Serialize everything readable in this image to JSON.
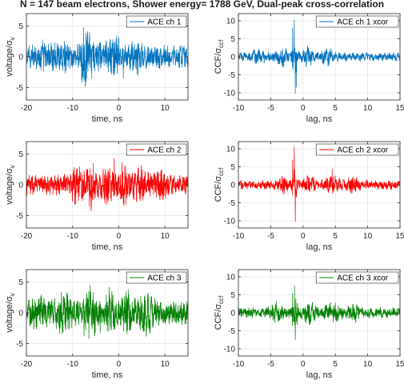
{
  "figure": {
    "title": "N = 147 beam electrons, Shower energy= 1788 GeV, Dual-peak cross-correlation"
  },
  "colors": {
    "ch1": "#0072BD",
    "ch2": "#FF0000",
    "ch3": "#008000"
  },
  "chart_data": [
    {
      "type": "line",
      "id": "v1",
      "xlabel": "time, ns",
      "ylabel": "voltage/",
      "ylabel_sym": "σ",
      "ylabel_sub": "v",
      "xlim": [
        -20,
        15
      ],
      "ylim": [
        -7,
        7
      ],
      "xticks": [
        "-20",
        "-10",
        "0",
        "10"
      ],
      "xtick_values": [
        -20,
        -10,
        0,
        10
      ],
      "yticks": [
        "-5",
        "0",
        "5"
      ],
      "ytick_values": [
        -5,
        0,
        5
      ],
      "grid": true,
      "legend": "top-right",
      "series": [
        {
          "name": "ACE ch 1",
          "color": "#0072BD",
          "noise": 0.9,
          "features": [
            {
              "x": -16,
              "w": 1.5,
              "a": 0.5
            },
            {
              "x": -12,
              "w": 1.5,
              "a": 0.6
            },
            {
              "x": -7.5,
              "w": 0.8,
              "a": 1.3
            },
            {
              "x": -6.5,
              "w": 1.2,
              "a": 1.1
            },
            {
              "x": -3,
              "w": 1.5,
              "a": 0.7
            },
            {
              "x": -0.5,
              "w": 1.0,
              "a": 1.0
            },
            {
              "x": 4,
              "w": 1.5,
              "a": 0.6
            }
          ],
          "peaks": [
            {
              "x": -7.6,
              "y": 4.8
            },
            {
              "x": -7.2,
              "y": -4.7
            },
            {
              "x": -6.3,
              "y": 4.0
            },
            {
              "x": -0.4,
              "y": 3.5
            },
            {
              "x": 1.0,
              "y": -3.5
            },
            {
              "x": 4.2,
              "y": -3.0
            },
            {
              "x": -16.5,
              "y": 2.8
            }
          ]
        }
      ]
    },
    {
      "type": "line",
      "id": "c1",
      "xlabel": "lag, ns",
      "ylabel": "CCF/",
      "ylabel_sym": "σ",
      "ylabel_sub": "ccf",
      "xlim": [
        -10,
        15
      ],
      "ylim": [
        -12,
        12
      ],
      "xticks": [
        "-10",
        "-5",
        "0",
        "5",
        "10",
        "15"
      ],
      "xtick_values": [
        -10,
        -5,
        0,
        5,
        10,
        15
      ],
      "yticks": [
        "-10",
        "-5",
        "0",
        "5",
        "10"
      ],
      "ytick_values": [
        -10,
        -5,
        0,
        5,
        10
      ],
      "grid": true,
      "legend": "top-right",
      "series": [
        {
          "name": "ACE ch 1 xcor",
          "color": "#0072BD",
          "noise": 0.6,
          "features": [
            {
              "x": -1.3,
              "w": 0.4,
              "a": 3.0
            },
            {
              "x": -3.2,
              "w": 0.8,
              "a": 1.5
            },
            {
              "x": 0.8,
              "w": 0.8,
              "a": 1.5
            },
            {
              "x": 3.8,
              "w": 1.0,
              "a": 1.0
            },
            {
              "x": -7,
              "w": 1.2,
              "a": 0.8
            }
          ],
          "peaks": [
            {
              "x": -1.35,
              "y": 10.2
            },
            {
              "x": -1.2,
              "y": -10.3
            },
            {
              "x": -1.6,
              "y": 8.0
            },
            {
              "x": -1.0,
              "y": -8.5
            }
          ]
        }
      ]
    },
    {
      "type": "line",
      "id": "v2",
      "xlabel": "time, ns",
      "ylabel": "voltage/",
      "ylabel_sym": "σ",
      "ylabel_sub": "v",
      "xlim": [
        -20,
        15
      ],
      "ylim": [
        -7,
        7
      ],
      "xticks": [
        "-20",
        "-10",
        "0",
        "10"
      ],
      "xtick_values": [
        -20,
        -10,
        0,
        10
      ],
      "yticks": [
        "-5",
        "0",
        "5"
      ],
      "ytick_values": [
        -5,
        0,
        5
      ],
      "grid": true,
      "legend": "top-right",
      "series": [
        {
          "name": "ACE ch 2",
          "color": "#FF0000",
          "noise": 0.8,
          "features": [
            {
              "x": -9,
              "w": 1.2,
              "a": 1.3
            },
            {
              "x": -6,
              "w": 1.0,
              "a": 1.5
            },
            {
              "x": -2.5,
              "w": 1.2,
              "a": 1.3
            },
            {
              "x": 0.8,
              "w": 1.2,
              "a": 1.4
            },
            {
              "x": 4.5,
              "w": 1.5,
              "a": 0.9
            },
            {
              "x": 9,
              "w": 1.5,
              "a": 0.7
            }
          ],
          "peaks": [
            {
              "x": -6.0,
              "y": -4.3
            },
            {
              "x": -1.0,
              "y": 4.3
            },
            {
              "x": 1.5,
              "y": -3.2
            },
            {
              "x": -8.5,
              "y": 3.0
            }
          ]
        }
      ]
    },
    {
      "type": "line",
      "id": "c2",
      "xlabel": "lag, ns",
      "ylabel": "CCF/",
      "ylabel_sym": "σ",
      "ylabel_sub": "ccf",
      "xlim": [
        -10,
        15
      ],
      "ylim": [
        -12,
        12
      ],
      "xticks": [
        "-10",
        "-5",
        "0",
        "5",
        "10",
        "15"
      ],
      "xtick_values": [
        -10,
        -5,
        0,
        5,
        10,
        15
      ],
      "yticks": [
        "-10",
        "-5",
        "0",
        "5",
        "10"
      ],
      "ytick_values": [
        -10,
        -5,
        0,
        5,
        10
      ],
      "grid": true,
      "legend": "top-right",
      "series": [
        {
          "name": "ACE ch 2 xcor",
          "color": "#FF0000",
          "noise": 0.6,
          "features": [
            {
              "x": -1.3,
              "w": 0.4,
              "a": 3.0
            },
            {
              "x": -3.0,
              "w": 0.8,
              "a": 1.6
            },
            {
              "x": 1.0,
              "w": 0.8,
              "a": 1.5
            },
            {
              "x": 4.5,
              "w": 1.2,
              "a": 1.3
            },
            {
              "x": 7.5,
              "w": 1.2,
              "a": 1.0
            }
          ],
          "peaks": [
            {
              "x": -1.35,
              "y": 10.6
            },
            {
              "x": -1.2,
              "y": -10.3
            },
            {
              "x": -1.6,
              "y": 7.0
            },
            {
              "x": 4.5,
              "y": 4.5
            }
          ]
        }
      ]
    },
    {
      "type": "line",
      "id": "v3",
      "xlabel": "time, ns",
      "ylabel": "voltage/",
      "ylabel_sym": "σ",
      "ylabel_sub": "v",
      "xlim": [
        -20,
        15
      ],
      "ylim": [
        -7,
        7
      ],
      "xticks": [
        "-20",
        "-10",
        "0",
        "10"
      ],
      "xtick_values": [
        -20,
        -10,
        0,
        10
      ],
      "yticks": [
        "-5",
        "0",
        "5"
      ],
      "ytick_values": [
        -5,
        0,
        5
      ],
      "grid": true,
      "legend": "top-right",
      "series": [
        {
          "name": "ACE ch 3",
          "color": "#008000",
          "noise": 1.0,
          "features": [
            {
              "x": -17,
              "w": 1.5,
              "a": 0.6
            },
            {
              "x": -12,
              "w": 1.5,
              "a": 0.8
            },
            {
              "x": -6,
              "w": 1.0,
              "a": 1.3
            },
            {
              "x": -2,
              "w": 1.0,
              "a": 1.1
            },
            {
              "x": 2,
              "w": 1.2,
              "a": 0.9
            },
            {
              "x": 6,
              "w": 1.5,
              "a": 0.8
            }
          ],
          "peaks": [
            {
              "x": -6.5,
              "y": 3.5
            },
            {
              "x": -7.5,
              "y": -3.8
            },
            {
              "x": -2.0,
              "y": 3.0
            },
            {
              "x": -4.0,
              "y": -3.3
            }
          ]
        }
      ]
    },
    {
      "type": "line",
      "id": "c3",
      "xlabel": "lag, ns",
      "ylabel": "CCF/",
      "ylabel_sym": "σ",
      "ylabel_sub": "ccf",
      "xlim": [
        -10,
        15
      ],
      "ylim": [
        -12,
        12
      ],
      "xticks": [
        "-10",
        "-5",
        "0",
        "5",
        "10",
        "15"
      ],
      "xtick_values": [
        -10,
        -5,
        0,
        5,
        10,
        15
      ],
      "yticks": [
        "-10",
        "-5",
        "0",
        "5",
        "10"
      ],
      "ytick_values": [
        -10,
        -5,
        0,
        5,
        10
      ],
      "grid": true,
      "legend": "top-right",
      "series": [
        {
          "name": "ACE ch 3 xcor",
          "color": "#008000",
          "noise": 0.7,
          "features": [
            {
              "x": -1.3,
              "w": 0.5,
              "a": 2.3
            },
            {
              "x": -4,
              "w": 1.0,
              "a": 1.3
            },
            {
              "x": 1.0,
              "w": 1.0,
              "a": 1.4
            },
            {
              "x": 4.5,
              "w": 1.2,
              "a": 1.1
            },
            {
              "x": 8,
              "w": 1.2,
              "a": 0.9
            }
          ],
          "peaks": [
            {
              "x": -1.3,
              "y": 7.5
            },
            {
              "x": -1.2,
              "y": -7.5
            },
            {
              "x": -1.6,
              "y": 5.5
            }
          ]
        }
      ]
    }
  ]
}
